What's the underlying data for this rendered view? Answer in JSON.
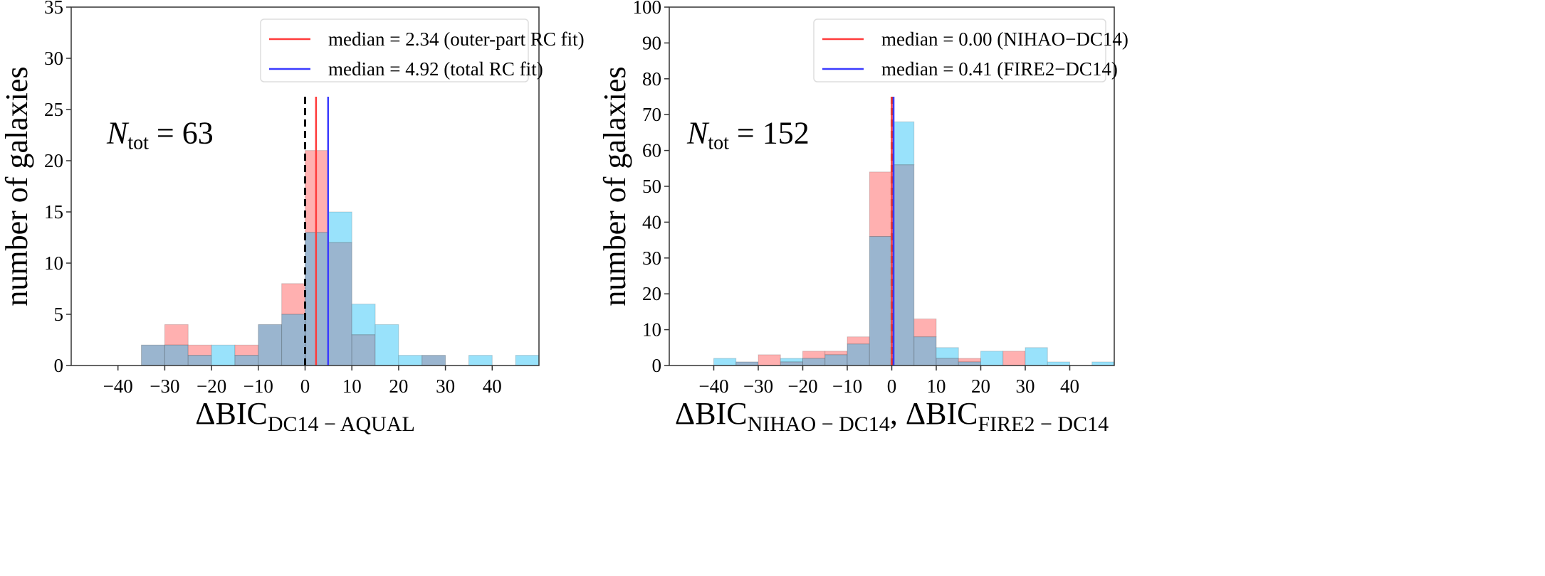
{
  "colors": {
    "red_hist": "#ffb0b0",
    "cyan_hist": "#99e2fb",
    "overlap": "#9ab5cf",
    "red_line": "#ff3b3b",
    "blue_line": "#3b3bff"
  },
  "chart_data": [
    {
      "type": "bar",
      "subtype": "overlaid-histogram",
      "xlabel_main": "ΔBIC",
      "xlabel_sub": "DC14 − AQUAL",
      "ylabel": "number of galaxies",
      "annotation": {
        "symbol": "N",
        "sub": "tot",
        "value": " = 63"
      },
      "xlim": [
        -50,
        50
      ],
      "ylim": [
        0,
        35
      ],
      "xticks": [
        -40,
        -30,
        -20,
        -10,
        0,
        10,
        20,
        30,
        40
      ],
      "yticks": [
        0,
        5,
        10,
        15,
        20,
        25,
        30,
        35
      ],
      "bin_edges_start": [
        -35,
        -30,
        -25,
        -20,
        -15,
        -10,
        -5,
        0,
        5,
        10,
        15,
        20,
        25,
        30,
        35,
        40,
        45
      ],
      "bin_width": 5,
      "series": [
        {
          "name": "median = 2.34 (outer-part RC fit)",
          "color": "red",
          "median": 2.34,
          "values": [
            2,
            4,
            2,
            0,
            2,
            4,
            8,
            21,
            12,
            3,
            0,
            0,
            1,
            0,
            0,
            0,
            0
          ]
        },
        {
          "name": "median = 4.92 (total RC fit)",
          "color": "blue",
          "median": 4.92,
          "values": [
            2,
            2,
            1,
            2,
            1,
            4,
            5,
            13,
            15,
            6,
            4,
            1,
            1,
            0,
            1,
            0,
            1
          ]
        }
      ],
      "reference_line": 0,
      "legend_position": "top-right",
      "grid": false
    },
    {
      "type": "bar",
      "subtype": "overlaid-histogram",
      "xlabel_main": "ΔBIC",
      "xlabel_sub": "NIHAO − DC14",
      "xlabel_sep": ", ",
      "xlabel_main2": "ΔBIC",
      "xlabel_sub2": "FIRE2 − DC14",
      "ylabel": "number of galaxies",
      "annotation": {
        "symbol": "N",
        "sub": "tot",
        "value": " = 152"
      },
      "xlim": [
        -50,
        50
      ],
      "ylim": [
        0,
        100
      ],
      "xticks": [
        -40,
        -30,
        -20,
        -10,
        0,
        10,
        20,
        30,
        40
      ],
      "yticks": [
        0,
        10,
        20,
        30,
        40,
        50,
        60,
        70,
        80,
        90,
        100
      ],
      "bin_edges_start": [
        -40,
        -35,
        -30,
        -25,
        -20,
        -15,
        -10,
        -5,
        0,
        5,
        10,
        15,
        20,
        25,
        30,
        35,
        40,
        45
      ],
      "bin_width": 5,
      "series": [
        {
          "name": "median = 0.00 (NIHAO−DC14)",
          "color": "red",
          "median": 0.0,
          "values": [
            0,
            1,
            3,
            1,
            4,
            4,
            8,
            54,
            56,
            13,
            2,
            2,
            0,
            4,
            0,
            0,
            0,
            0
          ]
        },
        {
          "name": "median = 0.41 (FIRE2−DC14)",
          "color": "blue",
          "median": 0.41,
          "values": [
            2,
            1,
            0,
            2,
            2,
            3,
            6,
            36,
            68,
            8,
            5,
            1,
            4,
            0,
            5,
            1,
            0,
            1
          ]
        }
      ],
      "reference_line": 0,
      "legend_position": "top-right",
      "grid": false
    }
  ]
}
